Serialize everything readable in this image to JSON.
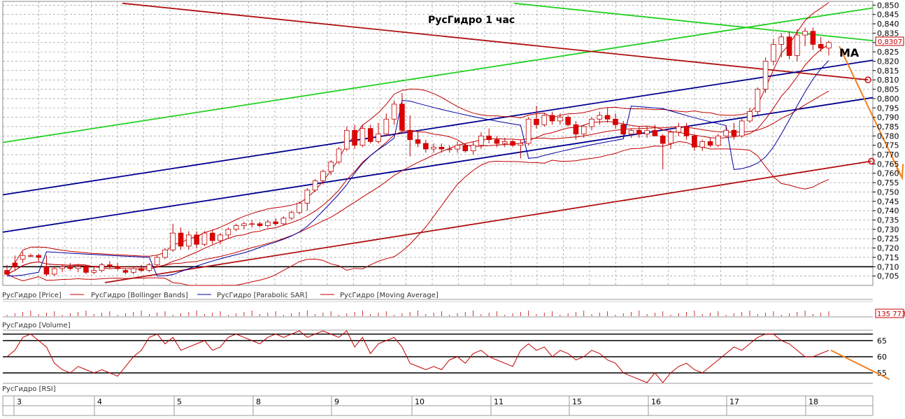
{
  "chart_data": {
    "type": "candlestick",
    "title": "РусГидро   1 час",
    "annotation": "MA",
    "last_price_label": "0,8307",
    "volume_label": "135 773",
    "colors": {
      "up": "#ffffff",
      "down": "#e00000",
      "wick": "#c00000",
      "bollinger": "#c00000",
      "sar": "#0000a0",
      "ma": "#c00000",
      "green": "#20d020",
      "navy": "#000090",
      "maroon": "#b01010",
      "orange": "#f08020",
      "grid": "#888888"
    },
    "ylim": [
      0.7,
      0.852
    ],
    "y_ticks": [
      "0,850",
      "0,845",
      "0,840",
      "0,835",
      "0,830",
      "0,825",
      "0,820",
      "0,815",
      "0,810",
      "0,805",
      "0,800",
      "0,795",
      "0,790",
      "0,785",
      "0,780",
      "0,775",
      "0,770",
      "0,765",
      "0,760",
      "0,755",
      "0,750",
      "0,745",
      "0,740",
      "0,735",
      "0,730",
      "0,725",
      "0,720",
      "0,715",
      "0,710",
      "0,705"
    ],
    "y_tick_values": [
      0.85,
      0.845,
      0.84,
      0.835,
      0.83,
      0.825,
      0.82,
      0.815,
      0.81,
      0.805,
      0.8,
      0.795,
      0.79,
      0.785,
      0.78,
      0.775,
      0.77,
      0.765,
      0.76,
      0.755,
      0.75,
      0.745,
      0.74,
      0.735,
      0.73,
      0.725,
      0.72,
      0.715,
      0.71,
      0.705
    ],
    "x_days": [
      "3",
      "4",
      "5",
      "8",
      "9",
      "10",
      "11",
      "15",
      "16",
      "17",
      "18"
    ],
    "n_bars": 105,
    "ohlc": [
      [
        0.708,
        0.711,
        0.705,
        0.706
      ],
      [
        0.712,
        0.716,
        0.708,
        0.71
      ],
      [
        0.714,
        0.718,
        0.712,
        0.716
      ],
      [
        0.716,
        0.717,
        0.715,
        0.716
      ],
      [
        0.716,
        0.717,
        0.713,
        0.715
      ],
      [
        0.71,
        0.716,
        0.705,
        0.706
      ],
      [
        0.706,
        0.71,
        0.705,
        0.709
      ],
      [
        0.709,
        0.711,
        0.707,
        0.71
      ],
      [
        0.71,
        0.712,
        0.708,
        0.709
      ],
      [
        0.709,
        0.711,
        0.707,
        0.71
      ],
      [
        0.71,
        0.711,
        0.706,
        0.707
      ],
      [
        0.707,
        0.71,
        0.706,
        0.708
      ],
      [
        0.708,
        0.712,
        0.707,
        0.711
      ],
      [
        0.711,
        0.713,
        0.709,
        0.71
      ],
      [
        0.71,
        0.712,
        0.708,
        0.709
      ],
      [
        0.708,
        0.709,
        0.706,
        0.707
      ],
      [
        0.707,
        0.71,
        0.706,
        0.709
      ],
      [
        0.709,
        0.711,
        0.707,
        0.708
      ],
      [
        0.708,
        0.712,
        0.707,
        0.711
      ],
      [
        0.711,
        0.716,
        0.71,
        0.715
      ],
      [
        0.715,
        0.72,
        0.714,
        0.719
      ],
      [
        0.719,
        0.733,
        0.718,
        0.728
      ],
      [
        0.728,
        0.731,
        0.719,
        0.721
      ],
      [
        0.721,
        0.729,
        0.719,
        0.727
      ],
      [
        0.727,
        0.729,
        0.72,
        0.722
      ],
      [
        0.722,
        0.729,
        0.721,
        0.728
      ],
      [
        0.728,
        0.73,
        0.722,
        0.724
      ],
      [
        0.724,
        0.728,
        0.722,
        0.727
      ],
      [
        0.727,
        0.731,
        0.725,
        0.73
      ],
      [
        0.73,
        0.733,
        0.729,
        0.732
      ],
      [
        0.732,
        0.734,
        0.73,
        0.733
      ],
      [
        0.733,
        0.735,
        0.731,
        0.733
      ],
      [
        0.733,
        0.734,
        0.731,
        0.732
      ],
      [
        0.732,
        0.735,
        0.731,
        0.734
      ],
      [
        0.734,
        0.736,
        0.732,
        0.733
      ],
      [
        0.733,
        0.737,
        0.732,
        0.736
      ],
      [
        0.736,
        0.74,
        0.735,
        0.739
      ],
      [
        0.739,
        0.745,
        0.738,
        0.744
      ],
      [
        0.744,
        0.752,
        0.74,
        0.751
      ],
      [
        0.751,
        0.757,
        0.75,
        0.756
      ],
      [
        0.756,
        0.762,
        0.754,
        0.761
      ],
      [
        0.761,
        0.767,
        0.759,
        0.766
      ],
      [
        0.766,
        0.774,
        0.765,
        0.773
      ],
      [
        0.773,
        0.785,
        0.772,
        0.783
      ],
      [
        0.783,
        0.786,
        0.773,
        0.775
      ],
      [
        0.775,
        0.786,
        0.774,
        0.784
      ],
      [
        0.784,
        0.786,
        0.776,
        0.777
      ],
      [
        0.777,
        0.787,
        0.776,
        0.781
      ],
      [
        0.781,
        0.792,
        0.78,
        0.789
      ],
      [
        0.789,
        0.799,
        0.786,
        0.797
      ],
      [
        0.797,
        0.803,
        0.781,
        0.783
      ],
      [
        0.783,
        0.791,
        0.769,
        0.778
      ],
      [
        0.778,
        0.782,
        0.774,
        0.776
      ],
      [
        0.776,
        0.778,
        0.771,
        0.773
      ],
      [
        0.773,
        0.776,
        0.771,
        0.774
      ],
      [
        0.774,
        0.776,
        0.771,
        0.773
      ],
      [
        0.773,
        0.775,
        0.771,
        0.773
      ],
      [
        0.773,
        0.777,
        0.771,
        0.775
      ],
      [
        0.775,
        0.776,
        0.771,
        0.772
      ],
      [
        0.772,
        0.777,
        0.77,
        0.775
      ],
      [
        0.775,
        0.782,
        0.773,
        0.78
      ],
      [
        0.78,
        0.784,
        0.776,
        0.778
      ],
      [
        0.778,
        0.78,
        0.774,
        0.776
      ],
      [
        0.776,
        0.779,
        0.774,
        0.777
      ],
      [
        0.777,
        0.778,
        0.774,
        0.775
      ],
      [
        0.775,
        0.778,
        0.768,
        0.776
      ],
      [
        0.776,
        0.79,
        0.775,
        0.789
      ],
      [
        0.789,
        0.796,
        0.784,
        0.786
      ],
      [
        0.786,
        0.792,
        0.785,
        0.791
      ],
      [
        0.791,
        0.793,
        0.786,
        0.788
      ],
      [
        0.788,
        0.792,
        0.786,
        0.79
      ],
      [
        0.79,
        0.791,
        0.785,
        0.786
      ],
      [
        0.786,
        0.788,
        0.778,
        0.781
      ],
      [
        0.781,
        0.786,
        0.779,
        0.785
      ],
      [
        0.785,
        0.79,
        0.783,
        0.789
      ],
      [
        0.789,
        0.793,
        0.786,
        0.791
      ],
      [
        0.791,
        0.795,
        0.787,
        0.789
      ],
      [
        0.789,
        0.792,
        0.784,
        0.786
      ],
      [
        0.786,
        0.788,
        0.779,
        0.781
      ],
      [
        0.781,
        0.784,
        0.779,
        0.783
      ],
      [
        0.783,
        0.785,
        0.779,
        0.781
      ],
      [
        0.781,
        0.785,
        0.779,
        0.783
      ],
      [
        0.783,
        0.786,
        0.781,
        0.78
      ],
      [
        0.78,
        0.781,
        0.762,
        0.776
      ],
      [
        0.776,
        0.783,
        0.773,
        0.782
      ],
      [
        0.782,
        0.787,
        0.78,
        0.785
      ],
      [
        0.785,
        0.787,
        0.778,
        0.78
      ],
      [
        0.78,
        0.781,
        0.772,
        0.774
      ],
      [
        0.774,
        0.778,
        0.772,
        0.777
      ],
      [
        0.777,
        0.779,
        0.774,
        0.775
      ],
      [
        0.775,
        0.781,
        0.774,
        0.78
      ],
      [
        0.78,
        0.785,
        0.779,
        0.783
      ],
      [
        0.783,
        0.787,
        0.778,
        0.78
      ],
      [
        0.78,
        0.79,
        0.779,
        0.788
      ],
      [
        0.788,
        0.795,
        0.787,
        0.793
      ],
      [
        0.793,
        0.806,
        0.791,
        0.805
      ],
      [
        0.805,
        0.822,
        0.803,
        0.82
      ],
      [
        0.82,
        0.832,
        0.818,
        0.829
      ],
      [
        0.829,
        0.835,
        0.822,
        0.833
      ],
      [
        0.833,
        0.836,
        0.821,
        0.823
      ],
      [
        0.823,
        0.837,
        0.82,
        0.834
      ],
      [
        0.834,
        0.838,
        0.828,
        0.836
      ],
      [
        0.836,
        0.838,
        0.826,
        0.829
      ],
      [
        0.829,
        0.833,
        0.825,
        0.827
      ],
      [
        0.827,
        0.831,
        0.823,
        0.83
      ]
    ],
    "legend": [
      "РусГидро [Price]",
      "РусГидро [Bollinger Bands]",
      "РусГидро [Parabolic SAR]",
      "РусГидро [Moving Average]"
    ],
    "volume_panel_title": "РусГидро [Volume]",
    "rsi_panel_title": "РусГидро [RSI]",
    "rsi_levels": [
      65,
      60,
      55
    ],
    "rsi_ylim": [
      52,
      68
    ],
    "rsi_values": [
      60,
      62,
      66,
      67,
      65,
      63,
      58,
      56,
      55,
      57,
      56,
      55,
      56,
      55,
      54,
      57,
      60,
      62,
      66,
      67,
      64,
      66,
      62,
      63,
      64,
      65,
      62,
      63,
      66,
      67,
      66,
      65,
      64,
      66,
      67,
      66,
      67,
      68,
      66,
      67,
      68,
      67,
      66,
      68,
      63,
      66,
      61,
      64,
      65,
      66,
      63,
      58,
      57,
      56,
      57,
      56,
      59,
      60,
      58,
      61,
      62,
      60,
      59,
      58,
      57,
      62,
      64,
      62,
      63,
      60,
      62,
      61,
      59,
      60,
      62,
      61,
      59,
      58,
      55,
      54,
      53,
      52,
      55,
      52,
      55,
      57,
      58,
      56,
      55,
      57,
      59,
      61,
      63,
      62,
      64,
      66,
      67,
      67,
      65,
      64,
      62,
      60,
      60,
      61,
      62
    ]
  }
}
